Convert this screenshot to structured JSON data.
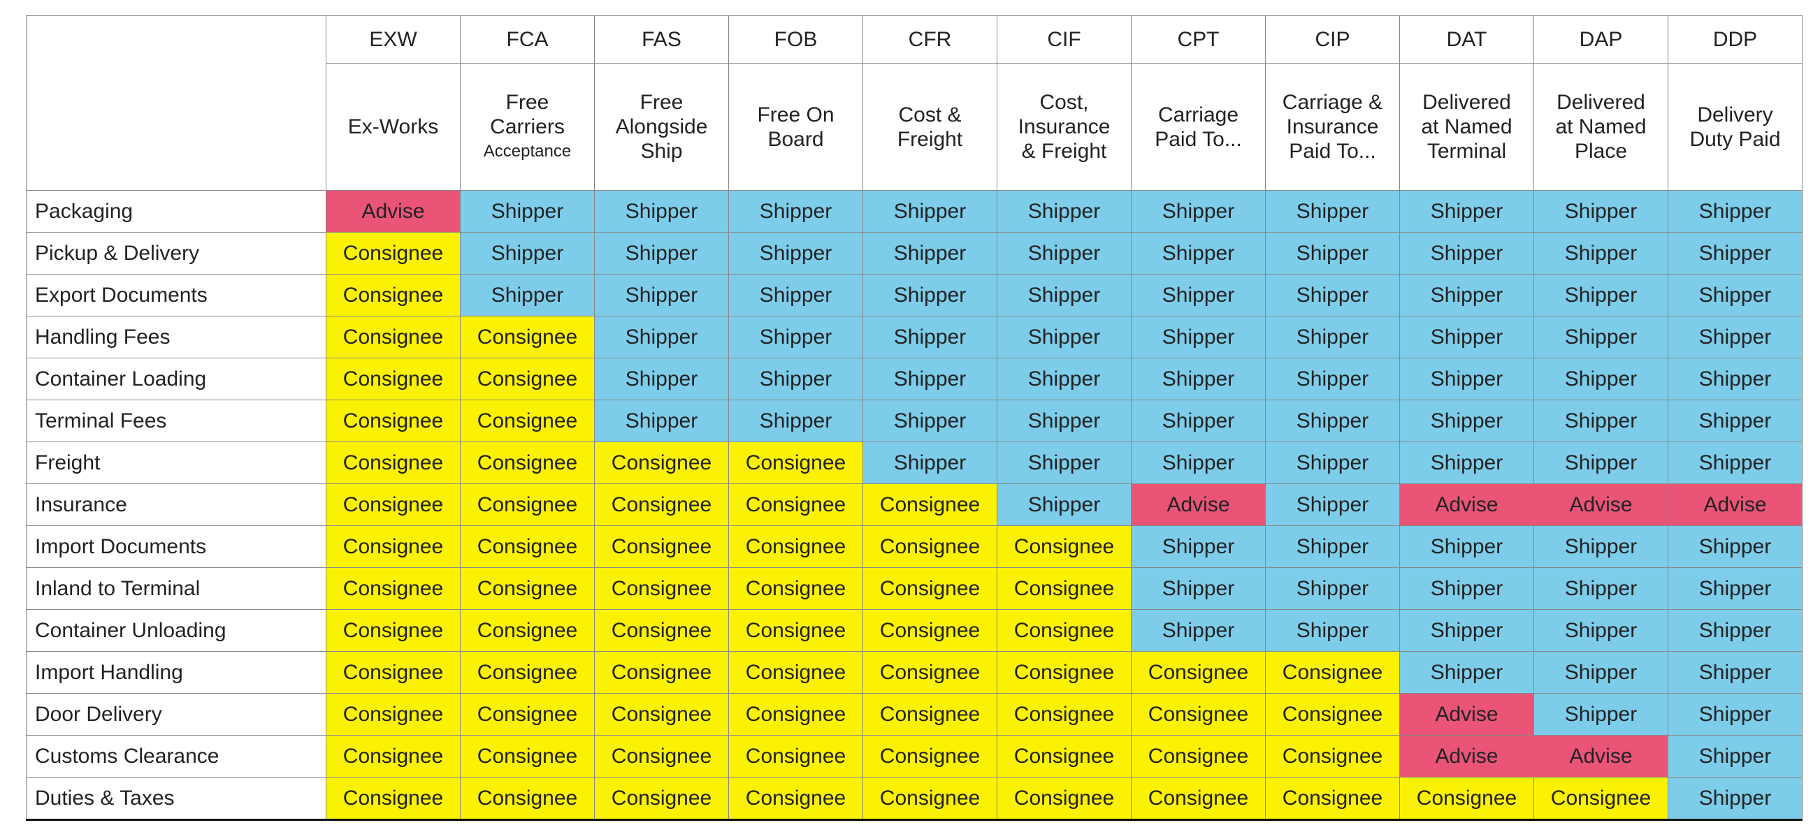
{
  "columns": [
    {
      "code": "EXW",
      "name_lines": [
        "Ex-Works"
      ]
    },
    {
      "code": "FCA",
      "name_lines": [
        "Free",
        "Carriers",
        "Acceptance"
      ]
    },
    {
      "code": "FAS",
      "name_lines": [
        "Free",
        "Alongside",
        "Ship"
      ]
    },
    {
      "code": "FOB",
      "name_lines": [
        "Free On",
        "Board"
      ]
    },
    {
      "code": "CFR",
      "name_lines": [
        "Cost &",
        "Freight"
      ]
    },
    {
      "code": "CIF",
      "name_lines": [
        "Cost,",
        "Insurance",
        "& Freight"
      ]
    },
    {
      "code": "CPT",
      "name_lines": [
        "Carriage",
        "Paid To..."
      ]
    },
    {
      "code": "CIP",
      "name_lines": [
        "Carriage &",
        "Insurance",
        "Paid To..."
      ]
    },
    {
      "code": "DAT",
      "name_lines": [
        "Delivered",
        "at Named",
        "Terminal"
      ]
    },
    {
      "code": "DAP",
      "name_lines": [
        "Delivered",
        "at Named",
        "Place"
      ]
    },
    {
      "code": "DDP",
      "name_lines": [
        "Delivery",
        "Duty Paid"
      ]
    }
  ],
  "cell_colors": {
    "Shipper": "#7dcdea",
    "Consignee": "#fbf203",
    "Advise": "#ea5477"
  },
  "rows": [
    {
      "label": "Packaging",
      "cells": [
        "Advise",
        "Shipper",
        "Shipper",
        "Shipper",
        "Shipper",
        "Shipper",
        "Shipper",
        "Shipper",
        "Shipper",
        "Shipper",
        "Shipper"
      ]
    },
    {
      "label": "Pickup & Delivery",
      "cells": [
        "Consignee",
        "Shipper",
        "Shipper",
        "Shipper",
        "Shipper",
        "Shipper",
        "Shipper",
        "Shipper",
        "Shipper",
        "Shipper",
        "Shipper"
      ]
    },
    {
      "label": "Export Documents",
      "cells": [
        "Consignee",
        "Shipper",
        "Shipper",
        "Shipper",
        "Shipper",
        "Shipper",
        "Shipper",
        "Shipper",
        "Shipper",
        "Shipper",
        "Shipper"
      ]
    },
    {
      "label": "Handling Fees",
      "cells": [
        "Consignee",
        "Consignee",
        "Shipper",
        "Shipper",
        "Shipper",
        "Shipper",
        "Shipper",
        "Shipper",
        "Shipper",
        "Shipper",
        "Shipper"
      ]
    },
    {
      "label": "Container Loading",
      "cells": [
        "Consignee",
        "Consignee",
        "Shipper",
        "Shipper",
        "Shipper",
        "Shipper",
        "Shipper",
        "Shipper",
        "Shipper",
        "Shipper",
        "Shipper"
      ]
    },
    {
      "label": "Terminal Fees",
      "cells": [
        "Consignee",
        "Consignee",
        "Shipper",
        "Shipper",
        "Shipper",
        "Shipper",
        "Shipper",
        "Shipper",
        "Shipper",
        "Shipper",
        "Shipper"
      ]
    },
    {
      "label": "Freight",
      "cells": [
        "Consignee",
        "Consignee",
        "Consignee",
        "Consignee",
        "Shipper",
        "Shipper",
        "Shipper",
        "Shipper",
        "Shipper",
        "Shipper",
        "Shipper"
      ]
    },
    {
      "label": "Insurance",
      "cells": [
        "Consignee",
        "Consignee",
        "Consignee",
        "Consignee",
        "Consignee",
        "Shipper",
        "Advise",
        "Shipper",
        "Advise",
        "Advise",
        "Advise"
      ]
    },
    {
      "label": "Import Documents",
      "cells": [
        "Consignee",
        "Consignee",
        "Consignee",
        "Consignee",
        "Consignee",
        "Consignee",
        "Shipper",
        "Shipper",
        "Shipper",
        "Shipper",
        "Shipper"
      ]
    },
    {
      "label": "Inland to Terminal",
      "cells": [
        "Consignee",
        "Consignee",
        "Consignee",
        "Consignee",
        "Consignee",
        "Consignee",
        "Shipper",
        "Shipper",
        "Shipper",
        "Shipper",
        "Shipper"
      ]
    },
    {
      "label": "Container Unloading",
      "cells": [
        "Consignee",
        "Consignee",
        "Consignee",
        "Consignee",
        "Consignee",
        "Consignee",
        "Shipper",
        "Shipper",
        "Shipper",
        "Shipper",
        "Shipper"
      ]
    },
    {
      "label": "Import Handling",
      "cells": [
        "Consignee",
        "Consignee",
        "Consignee",
        "Consignee",
        "Consignee",
        "Consignee",
        "Consignee",
        "Consignee",
        "Shipper",
        "Shipper",
        "Shipper"
      ]
    },
    {
      "label": "Door Delivery",
      "cells": [
        "Consignee",
        "Consignee",
        "Consignee",
        "Consignee",
        "Consignee",
        "Consignee",
        "Consignee",
        "Consignee",
        "Advise",
        "Shipper",
        "Shipper"
      ]
    },
    {
      "label": "Customs Clearance",
      "cells": [
        "Consignee",
        "Consignee",
        "Consignee",
        "Consignee",
        "Consignee",
        "Consignee",
        "Consignee",
        "Consignee",
        "Advise",
        "Advise",
        "Shipper"
      ]
    },
    {
      "label": "Duties & Taxes",
      "cells": [
        "Consignee",
        "Consignee",
        "Consignee",
        "Consignee",
        "Consignee",
        "Consignee",
        "Consignee",
        "Consignee",
        "Consignee",
        "Consignee",
        "Shipper"
      ]
    }
  ]
}
